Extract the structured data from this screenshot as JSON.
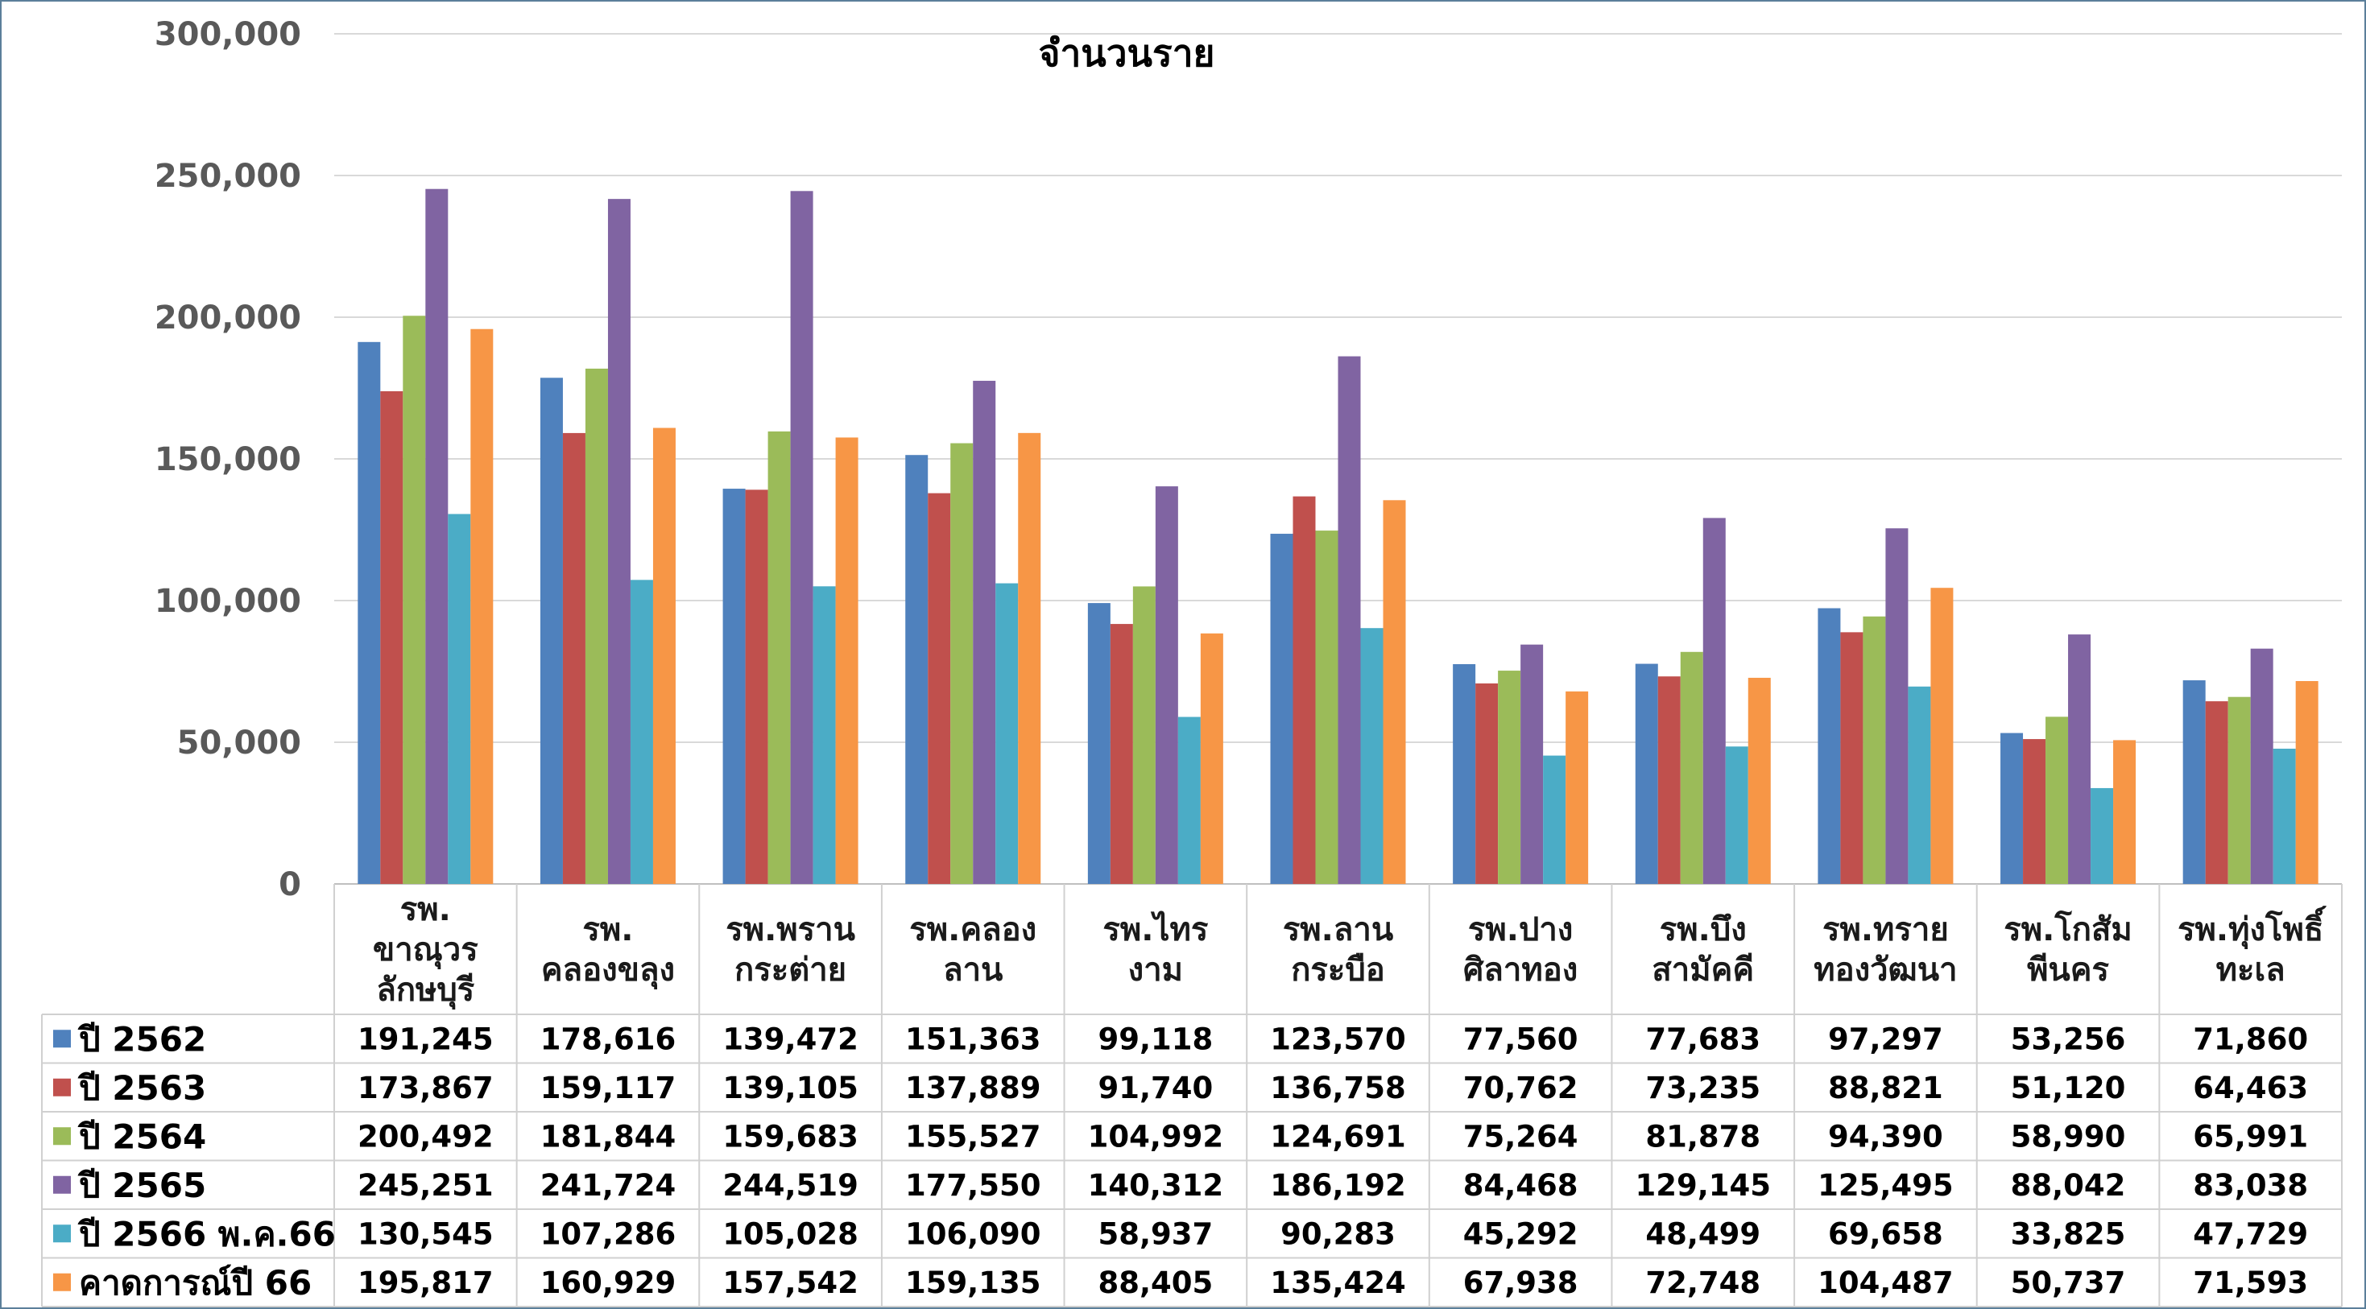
{
  "chart_data": {
    "type": "bar",
    "title": "จำนวนราย",
    "ylim": [
      0,
      300000
    ],
    "yticks": [
      "0",
      "50,000",
      "100,000",
      "150,000",
      "200,000",
      "250,000",
      "300,000"
    ],
    "ytick_values": [
      0,
      50000,
      100000,
      150000,
      200000,
      250000,
      300000
    ],
    "grid": true,
    "legend_placement": "data-table-left",
    "categories": [
      [
        "รพ.",
        "ขาณุวร",
        "ลักษบุรี"
      ],
      [
        "รพ.",
        "คลองขลุง"
      ],
      [
        "รพ.พราน",
        "กระต่าย"
      ],
      [
        "รพ.คลอง",
        "ลาน"
      ],
      [
        "รพ.ไทร",
        "งาม"
      ],
      [
        "รพ.ลาน",
        "กระบือ"
      ],
      [
        "รพ.ปาง",
        "ศิลาทอง"
      ],
      [
        "รพ.บึง",
        "สามัคคี"
      ],
      [
        "รพ.ทราย",
        "ทองวัฒนา"
      ],
      [
        "รพ.โกสัม",
        "พีนคร"
      ],
      [
        "รพ.ทุ่งโพธิ์",
        "ทะเล"
      ]
    ],
    "series": [
      {
        "name": "ปี 2562",
        "color": "#4f81bd",
        "values": [
          191245,
          178616,
          139472,
          151363,
          99118,
          123570,
          77560,
          77683,
          97297,
          53256,
          71860
        ],
        "labels": [
          "191,245",
          "178,616",
          "139,472",
          "151,363",
          "99,118",
          "123,570",
          "77,560",
          "77,683",
          "97,297",
          "53,256",
          "71,860"
        ]
      },
      {
        "name": "ปี 2563",
        "color": "#c0504d",
        "values": [
          173867,
          159117,
          139105,
          137889,
          91740,
          136758,
          70762,
          73235,
          88821,
          51120,
          64463
        ],
        "labels": [
          "173,867",
          "159,117",
          "139,105",
          "137,889",
          "91,740",
          "136,758",
          "70,762",
          "73,235",
          "88,821",
          "51,120",
          "64,463"
        ]
      },
      {
        "name": "ปี 2564",
        "color": "#9bbb59",
        "values": [
          200492,
          181844,
          159683,
          155527,
          104992,
          124691,
          75264,
          81878,
          94390,
          58990,
          65991
        ],
        "labels": [
          "200,492",
          "181,844",
          "159,683",
          "155,527",
          "104,992",
          "124,691",
          "75,264",
          "81,878",
          "94,390",
          "58,990",
          "65,991"
        ]
      },
      {
        "name": "ปี 2565",
        "color": "#8064a2",
        "values": [
          245251,
          241724,
          244519,
          177550,
          140312,
          186192,
          84468,
          129145,
          125495,
          88042,
          83038
        ],
        "labels": [
          "245,251",
          "241,724",
          "244,519",
          "177,550",
          "140,312",
          "186,192",
          "84,468",
          "129,145",
          "125,495",
          "88,042",
          "83,038"
        ]
      },
      {
        "name": "ปี 2566 พ.ค.66",
        "color": "#4bacc6",
        "values": [
          130545,
          107286,
          105028,
          106090,
          58937,
          90283,
          45292,
          48499,
          69658,
          33825,
          47729
        ],
        "labels": [
          "130,545",
          "107,286",
          "105,028",
          "106,090",
          "58,937",
          "90,283",
          "45,292",
          "48,499",
          "69,658",
          "33,825",
          "47,729"
        ]
      },
      {
        "name": "คาดการณ์ปี 66",
        "color": "#f79646",
        "values": [
          195817,
          160929,
          157542,
          159135,
          88405,
          135424,
          67938,
          72748,
          104487,
          50737,
          71593
        ],
        "labels": [
          "195,817",
          "160,929",
          "157,542",
          "159,135",
          "88,405",
          "135,424",
          "67,938",
          "72,748",
          "104,487",
          "50,737",
          "71,593"
        ]
      }
    ]
  }
}
